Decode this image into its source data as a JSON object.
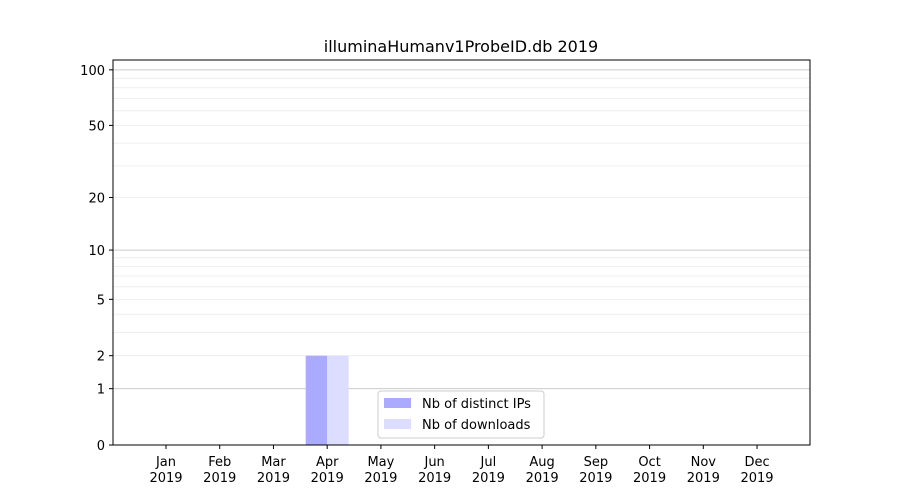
{
  "chart_data": {
    "type": "bar",
    "title": "illuminaHumanv1ProbeID.db 2019",
    "xlabel": "",
    "ylabel": "",
    "yscale": "log10(y+1)",
    "ylim": [
      0,
      113
    ],
    "yticks": [
      0,
      1,
      2,
      5,
      10,
      20,
      50,
      100
    ],
    "grid": true,
    "legend_position": "bottom-center",
    "categories": [
      "Jan\n2019",
      "Feb\n2019",
      "Mar\n2019",
      "Apr\n2019",
      "May\n2019",
      "Jun\n2019",
      "Jul\n2019",
      "Aug\n2019",
      "Sep\n2019",
      "Oct\n2019",
      "Nov\n2019",
      "Dec\n2019"
    ],
    "series": [
      {
        "name": "Nb of distinct IPs",
        "color": "#aaaaff",
        "values": [
          0,
          0,
          0,
          2,
          0,
          0,
          0,
          0,
          0,
          0,
          0,
          0
        ]
      },
      {
        "name": "Nb of downloads",
        "color": "#ddddff",
        "values": [
          0,
          0,
          0,
          2,
          0,
          0,
          0,
          0,
          0,
          0,
          0,
          0
        ]
      }
    ]
  }
}
